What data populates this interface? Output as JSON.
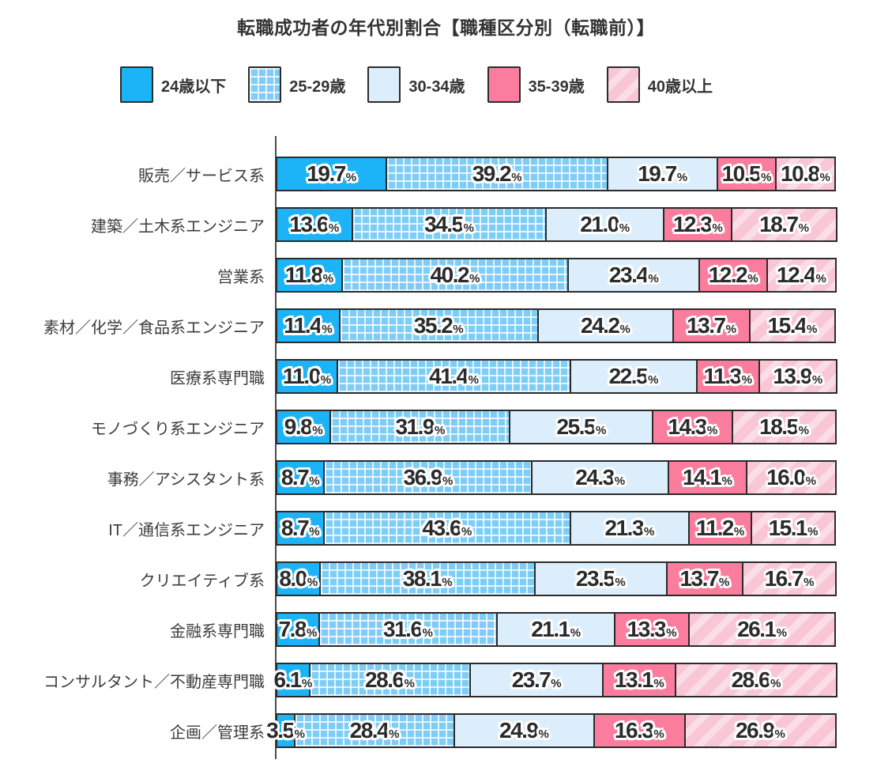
{
  "title": "転職成功者の年代別割合【職種区分別（転職前）】",
  "unit_suffix": "%",
  "legend": [
    {
      "label": "24歳以下",
      "style": "fill-0",
      "color": "#1db4f7",
      "pattern": "solid"
    },
    {
      "label": "25-29歳",
      "style": "fill-1",
      "color": "#7ecdf6",
      "pattern": "white-grid"
    },
    {
      "label": "30-34歳",
      "style": "fill-2",
      "color": "#dceefb",
      "pattern": "solid"
    },
    {
      "label": "35-39歳",
      "style": "fill-3",
      "color": "#fa7d9e",
      "pattern": "solid"
    },
    {
      "label": "40歳以上",
      "style": "fill-4",
      "color": "#f8c6d4",
      "pattern": "diagonal-stripe"
    }
  ],
  "chart_data": {
    "type": "bar",
    "stacked": true,
    "orientation": "horizontal",
    "xlim": [
      0,
      100
    ],
    "grid": false,
    "legend_position": "top",
    "title": "転職成功者の年代別割合【職種区分別（転職前）】",
    "xlabel": "",
    "ylabel": "",
    "categories": [
      "販売／サービス系",
      "建築／土木系エンジニア",
      "営業系",
      "素材／化学／食品系エンジニア",
      "医療系専門職",
      "モノづくり系エンジニア",
      "事務／アシスタント系",
      "IT／通信系エンジニア",
      "クリエイティブ系",
      "金融系専門職",
      "コンサルタント／不動産専門職",
      "企画／管理系"
    ],
    "series": [
      {
        "name": "24歳以下",
        "values": [
          19.7,
          13.6,
          11.8,
          11.4,
          11.0,
          9.8,
          8.7,
          8.7,
          8.0,
          7.8,
          6.1,
          3.5
        ],
        "labels": [
          "19.7",
          "13.6",
          "11.8",
          "11.4",
          "11.0",
          "9.8",
          "8.7",
          "8.7",
          "8.0",
          "7.8",
          "6.1",
          "3.5"
        ]
      },
      {
        "name": "25-29歳",
        "values": [
          39.2,
          34.5,
          40.2,
          35.2,
          41.4,
          31.9,
          36.9,
          43.6,
          38.1,
          31.6,
          28.6,
          28.4
        ],
        "labels": [
          "39.2",
          "34.5",
          "40.2",
          "35.2",
          "41.4",
          "31.9",
          "36.9",
          "43.6",
          "38.1",
          "31.6",
          "28.6",
          "28.4"
        ]
      },
      {
        "name": "30-34歳",
        "values": [
          19.7,
          21.0,
          23.4,
          24.2,
          22.5,
          25.5,
          24.3,
          21.3,
          23.5,
          21.1,
          23.7,
          24.9
        ],
        "labels": [
          "19.7",
          "21.0",
          "23.4",
          "24.2",
          "22.5",
          "25.5",
          "24.3",
          "21.3",
          "23.5",
          "21.1",
          "23.7",
          "24.9"
        ]
      },
      {
        "name": "35-39歳",
        "values": [
          10.5,
          12.3,
          12.2,
          13.7,
          11.3,
          14.3,
          14.1,
          11.2,
          13.7,
          13.3,
          13.1,
          16.3
        ],
        "labels": [
          "10.5",
          "12.3",
          "12.2",
          "13.7",
          "11.3",
          "14.3",
          "14.1",
          "11.2",
          "13.7",
          "13.3",
          "13.1",
          "16.3"
        ]
      },
      {
        "name": "40歳以上",
        "values": [
          10.8,
          18.7,
          12.4,
          15.4,
          13.9,
          18.5,
          16.0,
          15.1,
          16.7,
          26.1,
          28.6,
          26.9
        ],
        "labels": [
          "10.8",
          "18.7",
          "12.4",
          "15.4",
          "13.9",
          "18.5",
          "16.0",
          "15.1",
          "16.7",
          "26.1",
          "28.6",
          "26.9"
        ]
      }
    ]
  }
}
